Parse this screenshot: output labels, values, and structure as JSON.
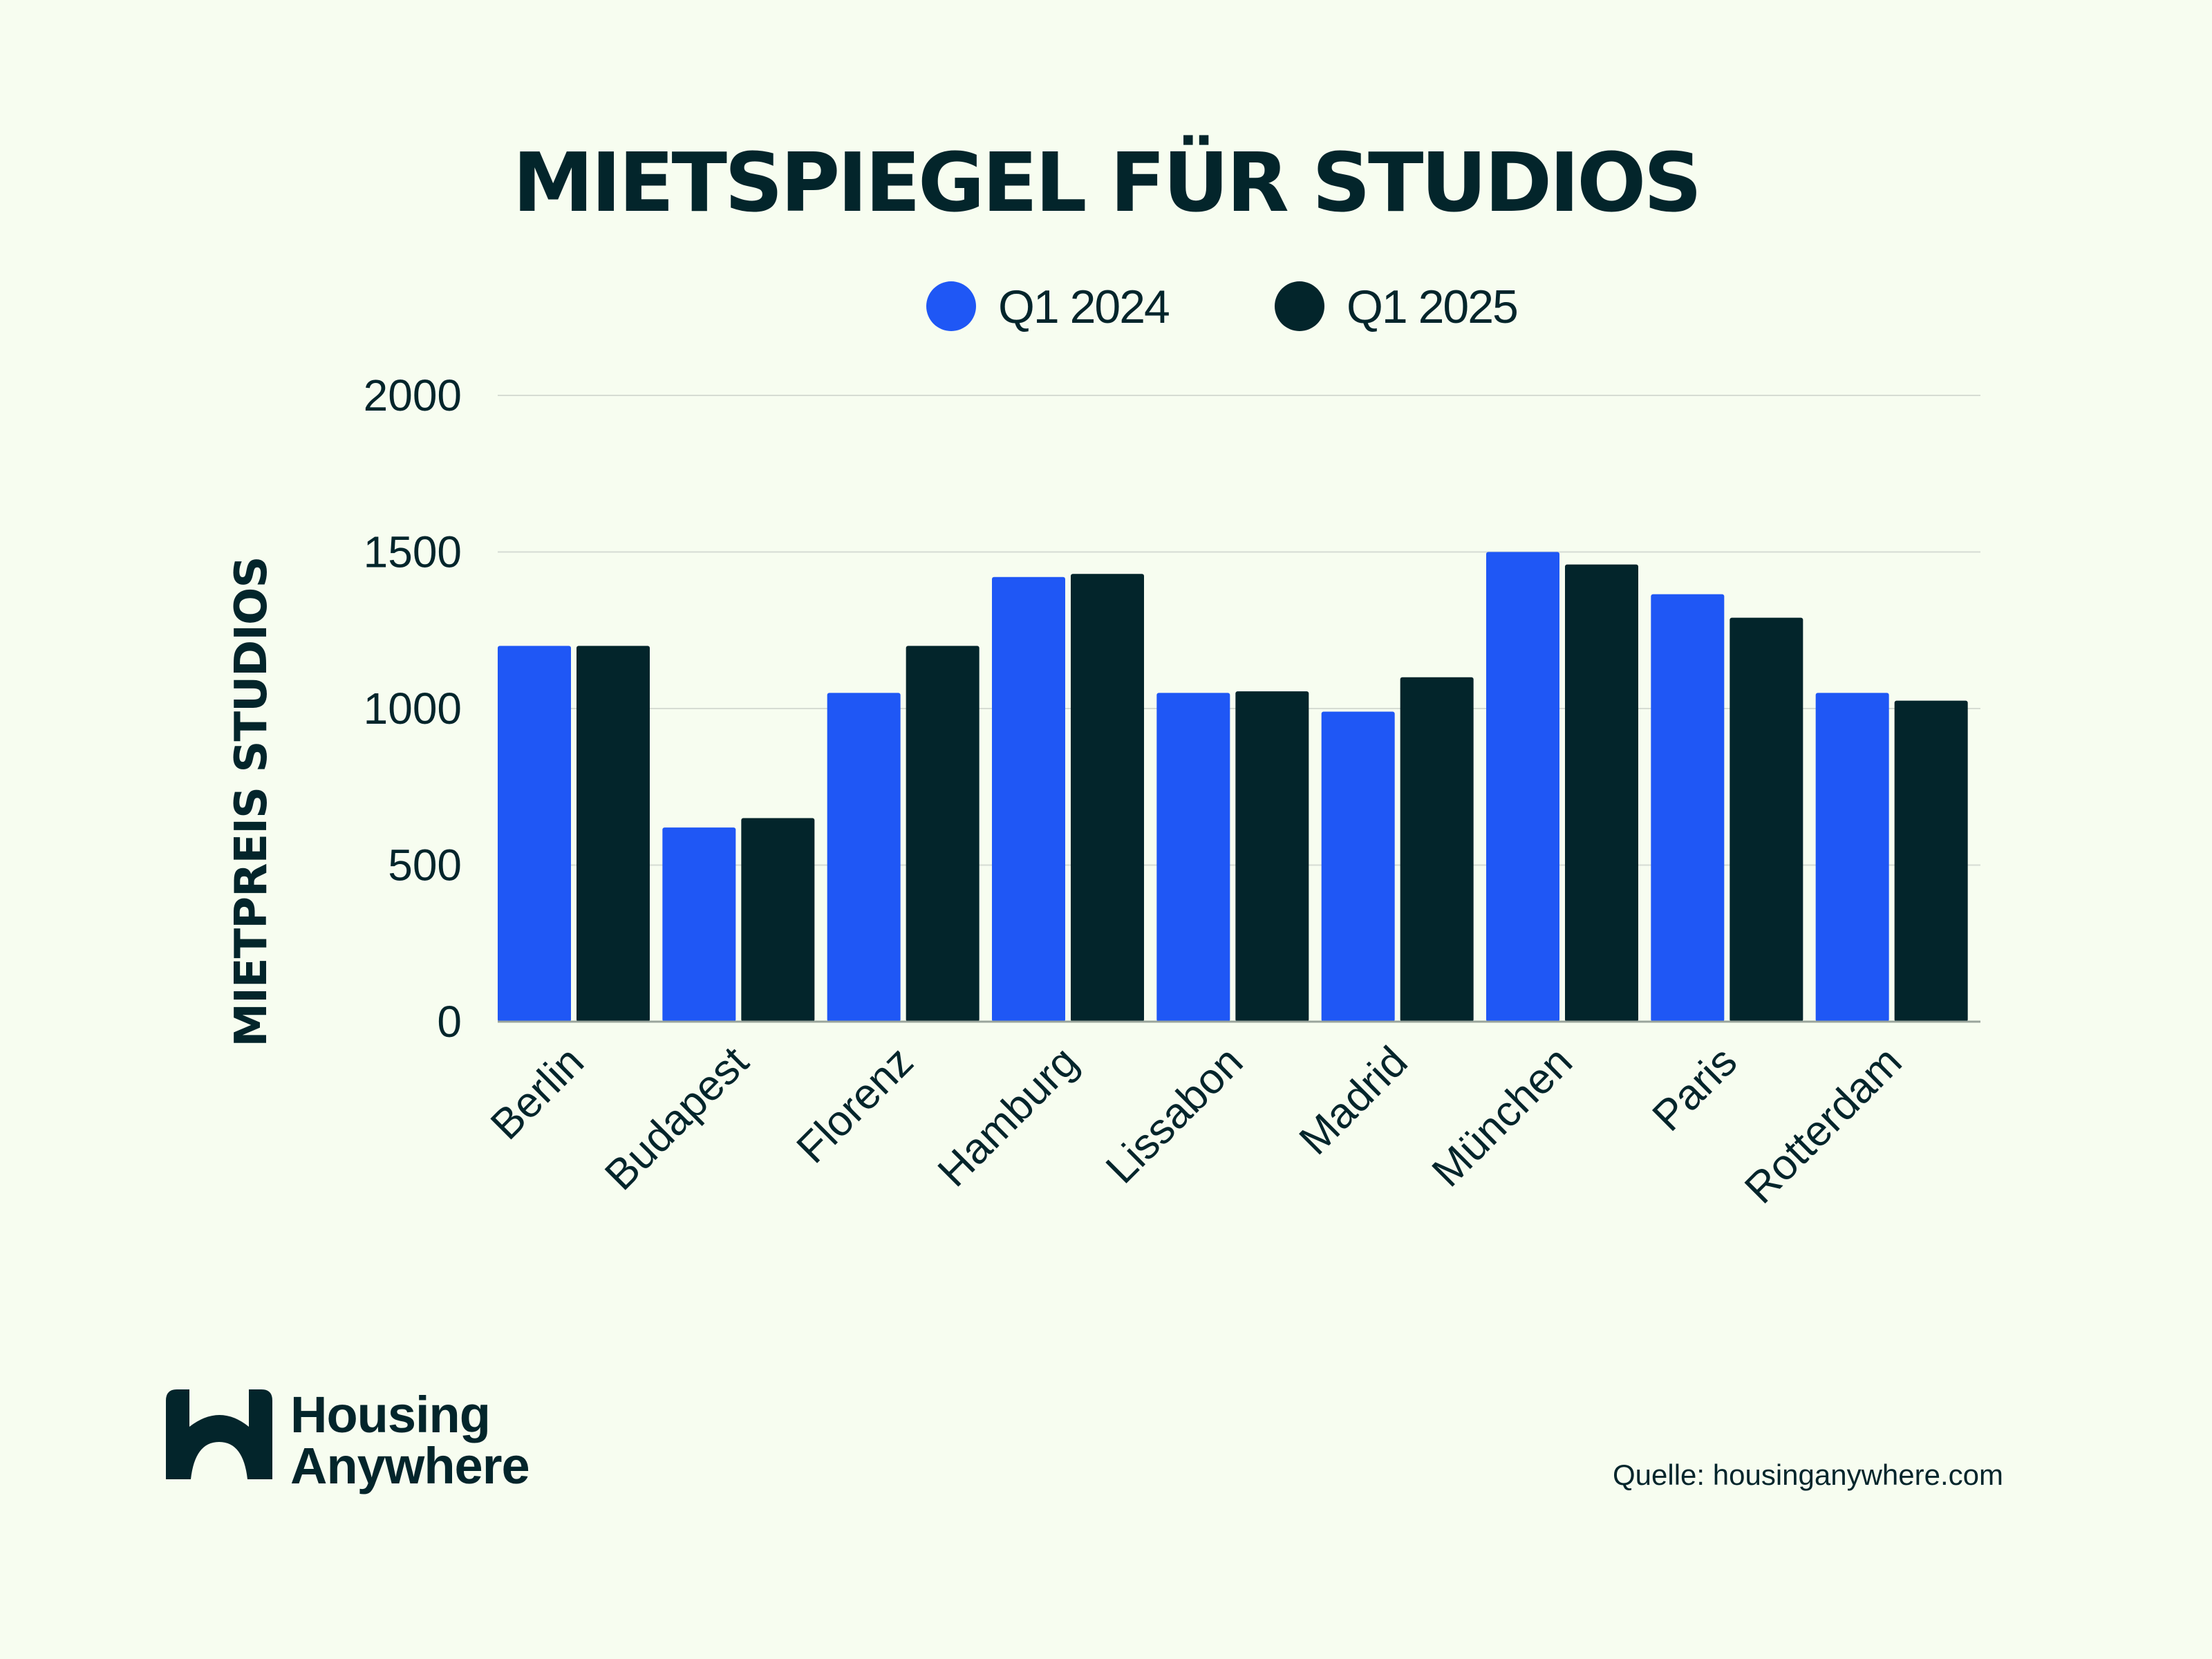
{
  "chart_data": {
    "type": "bar",
    "title": "MIETSPIEGEL FÜR STUDIOS",
    "xlabel": "",
    "ylabel": "MIETPREIS STUDIOS",
    "ylim": [
      0,
      2000
    ],
    "yticks": [
      0,
      500,
      1000,
      1500,
      2000
    ],
    "grid": true,
    "legend_position": "top-center",
    "categories": [
      "Berlin",
      "Budapest",
      "Florenz",
      "Hamburg",
      "Lissabon",
      "Madrid",
      "München",
      "Paris",
      "Rotterdam"
    ],
    "series": [
      {
        "name": "Q1 2024",
        "color": "#1f57f5",
        "values": [
          1200,
          620,
          1050,
          1420,
          1050,
          990,
          1500,
          1365,
          1050
        ]
      },
      {
        "name": "Q1 2025",
        "color": "#03252b",
        "values": [
          1200,
          650,
          1200,
          1430,
          1055,
          1100,
          1460,
          1290,
          1025
        ]
      }
    ]
  },
  "brand": {
    "line1": "Housing",
    "line2": "Anywhere",
    "color": "#03252b"
  },
  "source": "Quelle: housinganywhere.com"
}
